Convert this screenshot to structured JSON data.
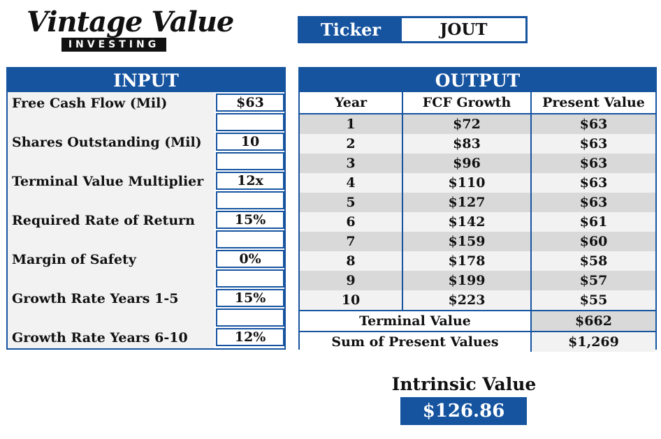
{
  "logo": {
    "script_text": "Vintage Value",
    "bar_text": "INVESTING"
  },
  "ticker": {
    "label": "Ticker",
    "value": "JOUT"
  },
  "input": {
    "title": "INPUT",
    "rows": [
      {
        "label": "Free Cash Flow (Mil)",
        "value": "$63"
      },
      {
        "label": "Shares Outstanding (Mil)",
        "value": "10"
      },
      {
        "label": "Terminal Value Multiplier",
        "value": "12x"
      },
      {
        "label": "Required Rate of Return",
        "value": "15%"
      },
      {
        "label": "Margin of Safety",
        "value": "0%"
      },
      {
        "label": "Growth Rate Years 1-5",
        "value": "15%"
      },
      {
        "label": "Growth Rate Years 6-10",
        "value": "12%"
      }
    ]
  },
  "output": {
    "title": "OUTPUT",
    "headers": [
      "Year",
      "FCF Growth",
      "Present Value"
    ],
    "rows": [
      {
        "year": "1",
        "fcf": "$72",
        "pv": "$63"
      },
      {
        "year": "2",
        "fcf": "$83",
        "pv": "$63"
      },
      {
        "year": "3",
        "fcf": "$96",
        "pv": "$63"
      },
      {
        "year": "4",
        "fcf": "$110",
        "pv": "$63"
      },
      {
        "year": "5",
        "fcf": "$127",
        "pv": "$63"
      },
      {
        "year": "6",
        "fcf": "$142",
        "pv": "$61"
      },
      {
        "year": "7",
        "fcf": "$159",
        "pv": "$60"
      },
      {
        "year": "8",
        "fcf": "$178",
        "pv": "$58"
      },
      {
        "year": "9",
        "fcf": "$199",
        "pv": "$57"
      },
      {
        "year": "10",
        "fcf": "$223",
        "pv": "$55"
      }
    ],
    "terminal_label": "Terminal Value",
    "terminal_value": "$662",
    "sum_label": "Sum of Present Values",
    "sum_value": "$1,269"
  },
  "intrinsic": {
    "label": "Intrinsic Value",
    "value": "$126.86"
  },
  "colors": {
    "accent": "#1654a0",
    "row_alt": "#d9d9d9",
    "row_norm": "#f2f2f2"
  }
}
